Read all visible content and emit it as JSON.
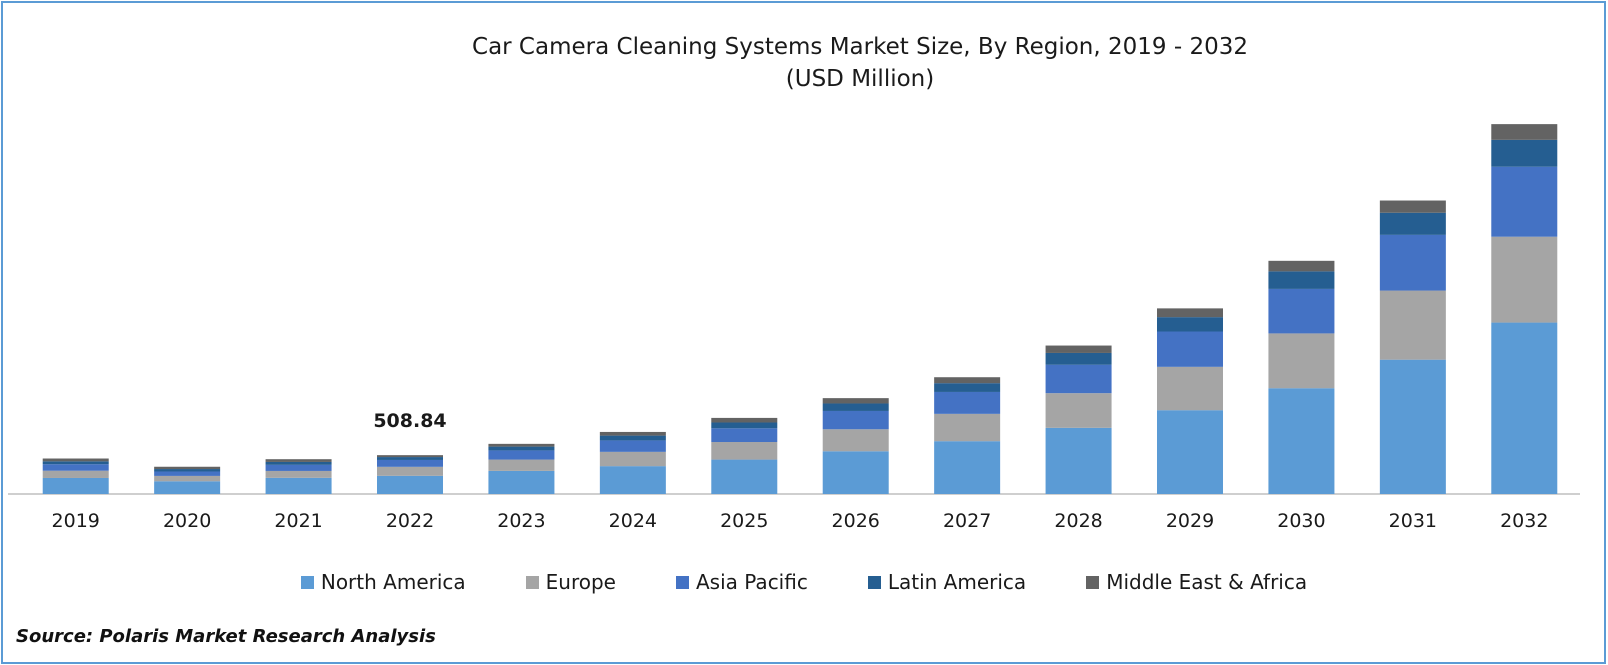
{
  "chart_data": {
    "type": "bar",
    "stacked": true,
    "title": "Car Camera Cleaning Systems Market Size, By Region, 2019 - 2032",
    "subtitle": "(USD Million)",
    "categories": [
      "2019",
      "2020",
      "2021",
      "2022",
      "2023",
      "2024",
      "2025",
      "2026",
      "2027",
      "2028",
      "2029",
      "2030",
      "2031",
      "2032"
    ],
    "series": [
      {
        "name": "North America",
        "color": "#5b9bd5",
        "values": [
          210,
          167,
          212,
          238,
          303,
          365,
          451,
          560,
          692,
          867,
          1098,
          1386,
          1760,
          2246
        ]
      },
      {
        "name": "Europe",
        "color": "#a5a5a5",
        "values": [
          95,
          70,
          90,
          118,
          148,
          187,
          230,
          288,
          358,
          454,
          568,
          718,
          905,
          1125
        ]
      },
      {
        "name": "Asia Pacific",
        "color": "#4472c4",
        "values": [
          85,
          58,
          80,
          90,
          120,
          150,
          180,
          240,
          287,
          372,
          463,
          583,
          730,
          917
        ]
      },
      {
        "name": "Latin America",
        "color": "#255e91",
        "values": [
          38,
          32,
          38,
          38,
          50,
          63,
          76,
          98,
          115,
          155,
          188,
          230,
          290,
          352
        ]
      },
      {
        "name": "Middle East & Africa",
        "color": "#636363",
        "values": [
          37,
          30,
          36,
          25,
          36,
          48,
          60,
          70,
          78,
          97,
          115,
          138,
          160,
          206
        ]
      }
    ],
    "annotations": [
      {
        "category": "2022",
        "text": "508.84"
      }
    ],
    "ylim": [
      0,
      4900
    ],
    "xlabel": "",
    "ylabel": "",
    "grid": false,
    "legend": "bottom"
  },
  "source": "Source: Polaris Market Research Analysis"
}
